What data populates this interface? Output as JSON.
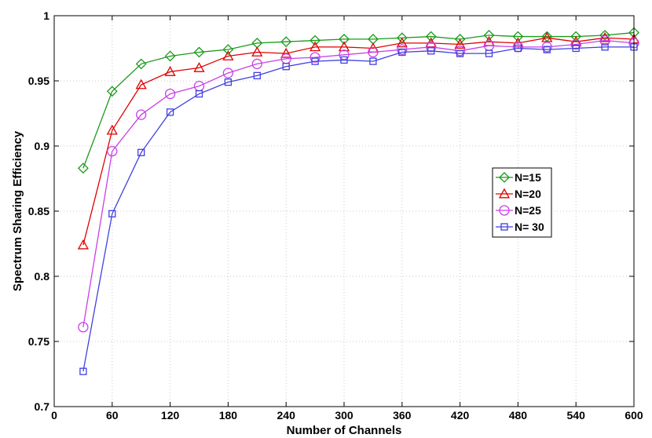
{
  "chart_data": {
    "type": "line",
    "xlabel": "Number of Channels",
    "ylabel": "Spectrum Sharing Efficiency",
    "xlim": [
      0,
      600
    ],
    "ylim": [
      0.7,
      1
    ],
    "xticks": [
      0,
      60,
      120,
      180,
      240,
      300,
      360,
      420,
      480,
      540,
      600
    ],
    "yticks": [
      0.7,
      0.75,
      0.8,
      0.85,
      0.9,
      0.95,
      1
    ],
    "xtick_labels": [
      "0",
      "60",
      "120",
      "180",
      "240",
      "300",
      "360",
      "420",
      "480",
      "540",
      "600"
    ],
    "ytick_labels": [
      "0.7",
      "0.75",
      "0.8",
      "0.85",
      "0.9",
      "0.95",
      "1"
    ],
    "grid": true,
    "legend_position": "center-right",
    "x": [
      30,
      60,
      90,
      120,
      150,
      180,
      210,
      240,
      270,
      300,
      330,
      360,
      390,
      420,
      450,
      480,
      510,
      540,
      570,
      600
    ],
    "series": [
      {
        "name": "N=15",
        "color": "#1a9a1a",
        "marker": "diamond",
        "values": [
          0.883,
          0.942,
          0.963,
          0.969,
          0.972,
          0.974,
          0.979,
          0.98,
          0.981,
          0.982,
          0.982,
          0.983,
          0.984,
          0.982,
          0.985,
          0.984,
          0.984,
          0.984,
          0.985,
          0.987
        ]
      },
      {
        "name": "N=20",
        "color": "#e00000",
        "marker": "triangle",
        "values": [
          0.824,
          0.912,
          0.947,
          0.957,
          0.96,
          0.969,
          0.972,
          0.971,
          0.976,
          0.976,
          0.975,
          0.979,
          0.979,
          0.978,
          0.98,
          0.979,
          0.983,
          0.98,
          0.983,
          0.982
        ]
      },
      {
        "name": "N=25",
        "color": "#c840e8",
        "marker": "circle",
        "values": [
          0.761,
          0.896,
          0.924,
          0.94,
          0.946,
          0.956,
          0.963,
          0.967,
          0.968,
          0.97,
          0.972,
          0.974,
          0.976,
          0.973,
          0.977,
          0.976,
          0.976,
          0.978,
          0.981,
          0.979
        ]
      },
      {
        "name": "N= 30",
        "color": "#4040e0",
        "marker": "square",
        "values": [
          0.727,
          0.848,
          0.895,
          0.926,
          0.94,
          0.949,
          0.954,
          0.961,
          0.965,
          0.966,
          0.965,
          0.972,
          0.973,
          0.971,
          0.971,
          0.975,
          0.974,
          0.975,
          0.976,
          0.976
        ]
      }
    ]
  }
}
